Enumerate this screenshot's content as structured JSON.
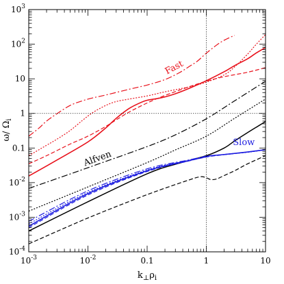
{
  "chart_data": {
    "type": "line",
    "xscale": "log",
    "yscale": "log",
    "xlim": [
      0.001,
      10
    ],
    "ylim": [
      0.0001,
      1000
    ],
    "grid": false,
    "reference_lines": {
      "x": 1,
      "y": 1
    },
    "xlabel_main": "k",
    "xlabel_sub1": "⊥",
    "xlabel_mid": "ρ",
    "xlabel_sub2": "i",
    "ylabel_main": "ω/ Ω",
    "ylabel_sub": "i",
    "x_ticks": [
      {
        "value": 0.001,
        "base": "10",
        "exp": "-3"
      },
      {
        "value": 0.01,
        "base": "10",
        "exp": "-2"
      },
      {
        "value": 0.1,
        "label": "0.1"
      },
      {
        "value": 1,
        "label": "1"
      },
      {
        "value": 10,
        "label": "10"
      }
    ],
    "y_ticks": [
      {
        "value": 0.0001,
        "base": "10",
        "exp": "-4"
      },
      {
        "value": 0.001,
        "base": "10",
        "exp": "-3"
      },
      {
        "value": 0.01,
        "base": "10",
        "exp": "-2"
      },
      {
        "value": 0.1,
        "label": "0.1"
      },
      {
        "value": 1,
        "label": "1"
      },
      {
        "value": 10,
        "label": "10"
      },
      {
        "value": 100,
        "base": "10",
        "exp": "2"
      },
      {
        "value": 1000,
        "base": "10",
        "exp": "3"
      }
    ],
    "annotations": [
      {
        "text": "Fast",
        "x": 0.3,
        "y": 18,
        "rotate": -28,
        "color": "#e8101a"
      },
      {
        "text": "Alfven",
        "x": 0.015,
        "y": 0.042,
        "rotate": -20,
        "color": "#000000"
      },
      {
        "text": "Slow",
        "x": 4.3,
        "y": 0.122,
        "rotate": 0,
        "color": "#1d1de0"
      }
    ],
    "series": [
      {
        "group": "fast",
        "color": "#e8101a",
        "dash": "9 3 2 3",
        "width": 1.2,
        "x": [
          0.001,
          0.0015,
          0.002,
          0.003,
          0.005,
          0.008,
          0.012,
          0.02,
          0.05,
          0.1,
          0.2,
          0.35,
          0.5,
          0.7,
          1,
          1.5,
          2,
          3
        ],
        "y": [
          0.22,
          0.38,
          0.6,
          0.98,
          1.7,
          2.3,
          2.8,
          3.4,
          5,
          6.6,
          9.5,
          15,
          22,
          32,
          55,
          95,
          130,
          180
        ]
      },
      {
        "group": "fast",
        "color": "#e8101a",
        "dash": "2 2",
        "width": 1.2,
        "x": [
          0.001,
          0.002,
          0.003,
          0.005,
          0.008,
          0.012,
          0.02,
          0.03,
          0.05,
          0.1,
          0.2,
          0.5,
          1,
          2,
          3,
          5,
          7,
          10
        ],
        "y": [
          0.06,
          0.12,
          0.18,
          0.32,
          0.62,
          1.05,
          1.7,
          2.2,
          2.6,
          3.2,
          4.2,
          5.8,
          8,
          13,
          22,
          52,
          100,
          190
        ]
      },
      {
        "group": "fast",
        "color": "#e8101a",
        "dash": "",
        "width": 1.6,
        "x": [
          0.001,
          0.003,
          0.01,
          0.02,
          0.03,
          0.05,
          0.08,
          0.1,
          0.15,
          0.2,
          0.3,
          0.5,
          1,
          2,
          3,
          5,
          7,
          10
        ],
        "y": [
          0.0155,
          0.045,
          0.15,
          0.38,
          0.72,
          1.4,
          2.1,
          2.4,
          2.7,
          3,
          3.7,
          5.2,
          8.8,
          16,
          24,
          38,
          56,
          80
        ]
      },
      {
        "group": "fast",
        "color": "#e8101a",
        "dash": "6 3",
        "width": 1.2,
        "x": [
          0.001,
          0.002,
          0.005,
          0.01,
          0.02,
          0.03,
          0.05,
          0.1,
          0.2,
          0.5,
          1,
          2,
          5,
          10
        ],
        "y": [
          0.035,
          0.06,
          0.13,
          0.22,
          0.42,
          0.65,
          1.1,
          2,
          3.3,
          5.8,
          8.5,
          11.5,
          15.5,
          21
        ]
      },
      {
        "group": "alfven",
        "color": "#000000",
        "dash": "9 3 2 3",
        "width": 1.2,
        "x": [
          0.001,
          0.01,
          0.1,
          0.3,
          1,
          3,
          10
        ],
        "y": [
          0.0068,
          0.027,
          0.11,
          0.24,
          0.7,
          2.3,
          8.5
        ]
      },
      {
        "group": "alfven",
        "color": "#000000",
        "dash": "2 2",
        "width": 1.2,
        "x": [
          0.001,
          0.01,
          0.1,
          0.3,
          1,
          3,
          10
        ],
        "y": [
          0.0015,
          0.0075,
          0.038,
          0.088,
          0.22,
          0.72,
          2.6
        ]
      },
      {
        "group": "alfven",
        "color": "#000000",
        "dash": "",
        "width": 1.5,
        "x": [
          0.001,
          0.01,
          0.1,
          0.3,
          1,
          2,
          3,
          5,
          7,
          10
        ],
        "y": [
          0.0004,
          0.0028,
          0.018,
          0.034,
          0.06,
          0.1,
          0.16,
          0.28,
          0.4,
          0.58
        ]
      },
      {
        "group": "alfven",
        "color": "#000000",
        "dash": "6 3",
        "width": 1.2,
        "x": [
          0.001,
          0.01,
          0.1,
          0.5,
          0.8,
          1,
          1.2,
          1.5,
          2,
          3,
          5,
          10
        ],
        "y": [
          0.00017,
          0.00095,
          0.0045,
          0.0118,
          0.0148,
          0.0138,
          0.0122,
          0.0128,
          0.016,
          0.022,
          0.035,
          0.06
        ]
      },
      {
        "group": "slow",
        "color": "#1d1de0",
        "dash": "9 3 2 3",
        "width": 1.2,
        "x": [
          0.001,
          0.01,
          0.1,
          0.5,
          1,
          2,
          5,
          10
        ],
        "y": [
          0.00076,
          0.0058,
          0.025,
          0.045,
          0.058,
          0.065,
          0.076,
          0.089
        ]
      },
      {
        "group": "slow",
        "color": "#1d1de0",
        "dash": "2 2",
        "width": 1.2,
        "x": [
          0.001,
          0.01,
          0.1,
          0.5,
          1,
          2,
          5,
          10
        ],
        "y": [
          0.00064,
          0.0052,
          0.023,
          0.044,
          0.057,
          0.065,
          0.076,
          0.089
        ]
      },
      {
        "group": "slow",
        "color": "#1d1de0",
        "dash": "",
        "width": 1.6,
        "x": [
          0.001,
          0.01,
          0.1,
          0.5,
          1,
          1.2,
          2,
          5,
          10
        ],
        "y": [
          0.00055,
          0.0048,
          0.022,
          0.043,
          0.056,
          0.06,
          0.065,
          0.077,
          0.09
        ]
      },
      {
        "group": "slow",
        "color": "#1d1de0",
        "dash": "6 3",
        "width": 1.2,
        "x": [
          0.001,
          0.01,
          0.1,
          0.5,
          1,
          2,
          5,
          10
        ],
        "y": [
          0.0005,
          0.0044,
          0.021,
          0.042,
          0.055,
          0.064,
          0.076,
          0.089
        ]
      }
    ]
  }
}
